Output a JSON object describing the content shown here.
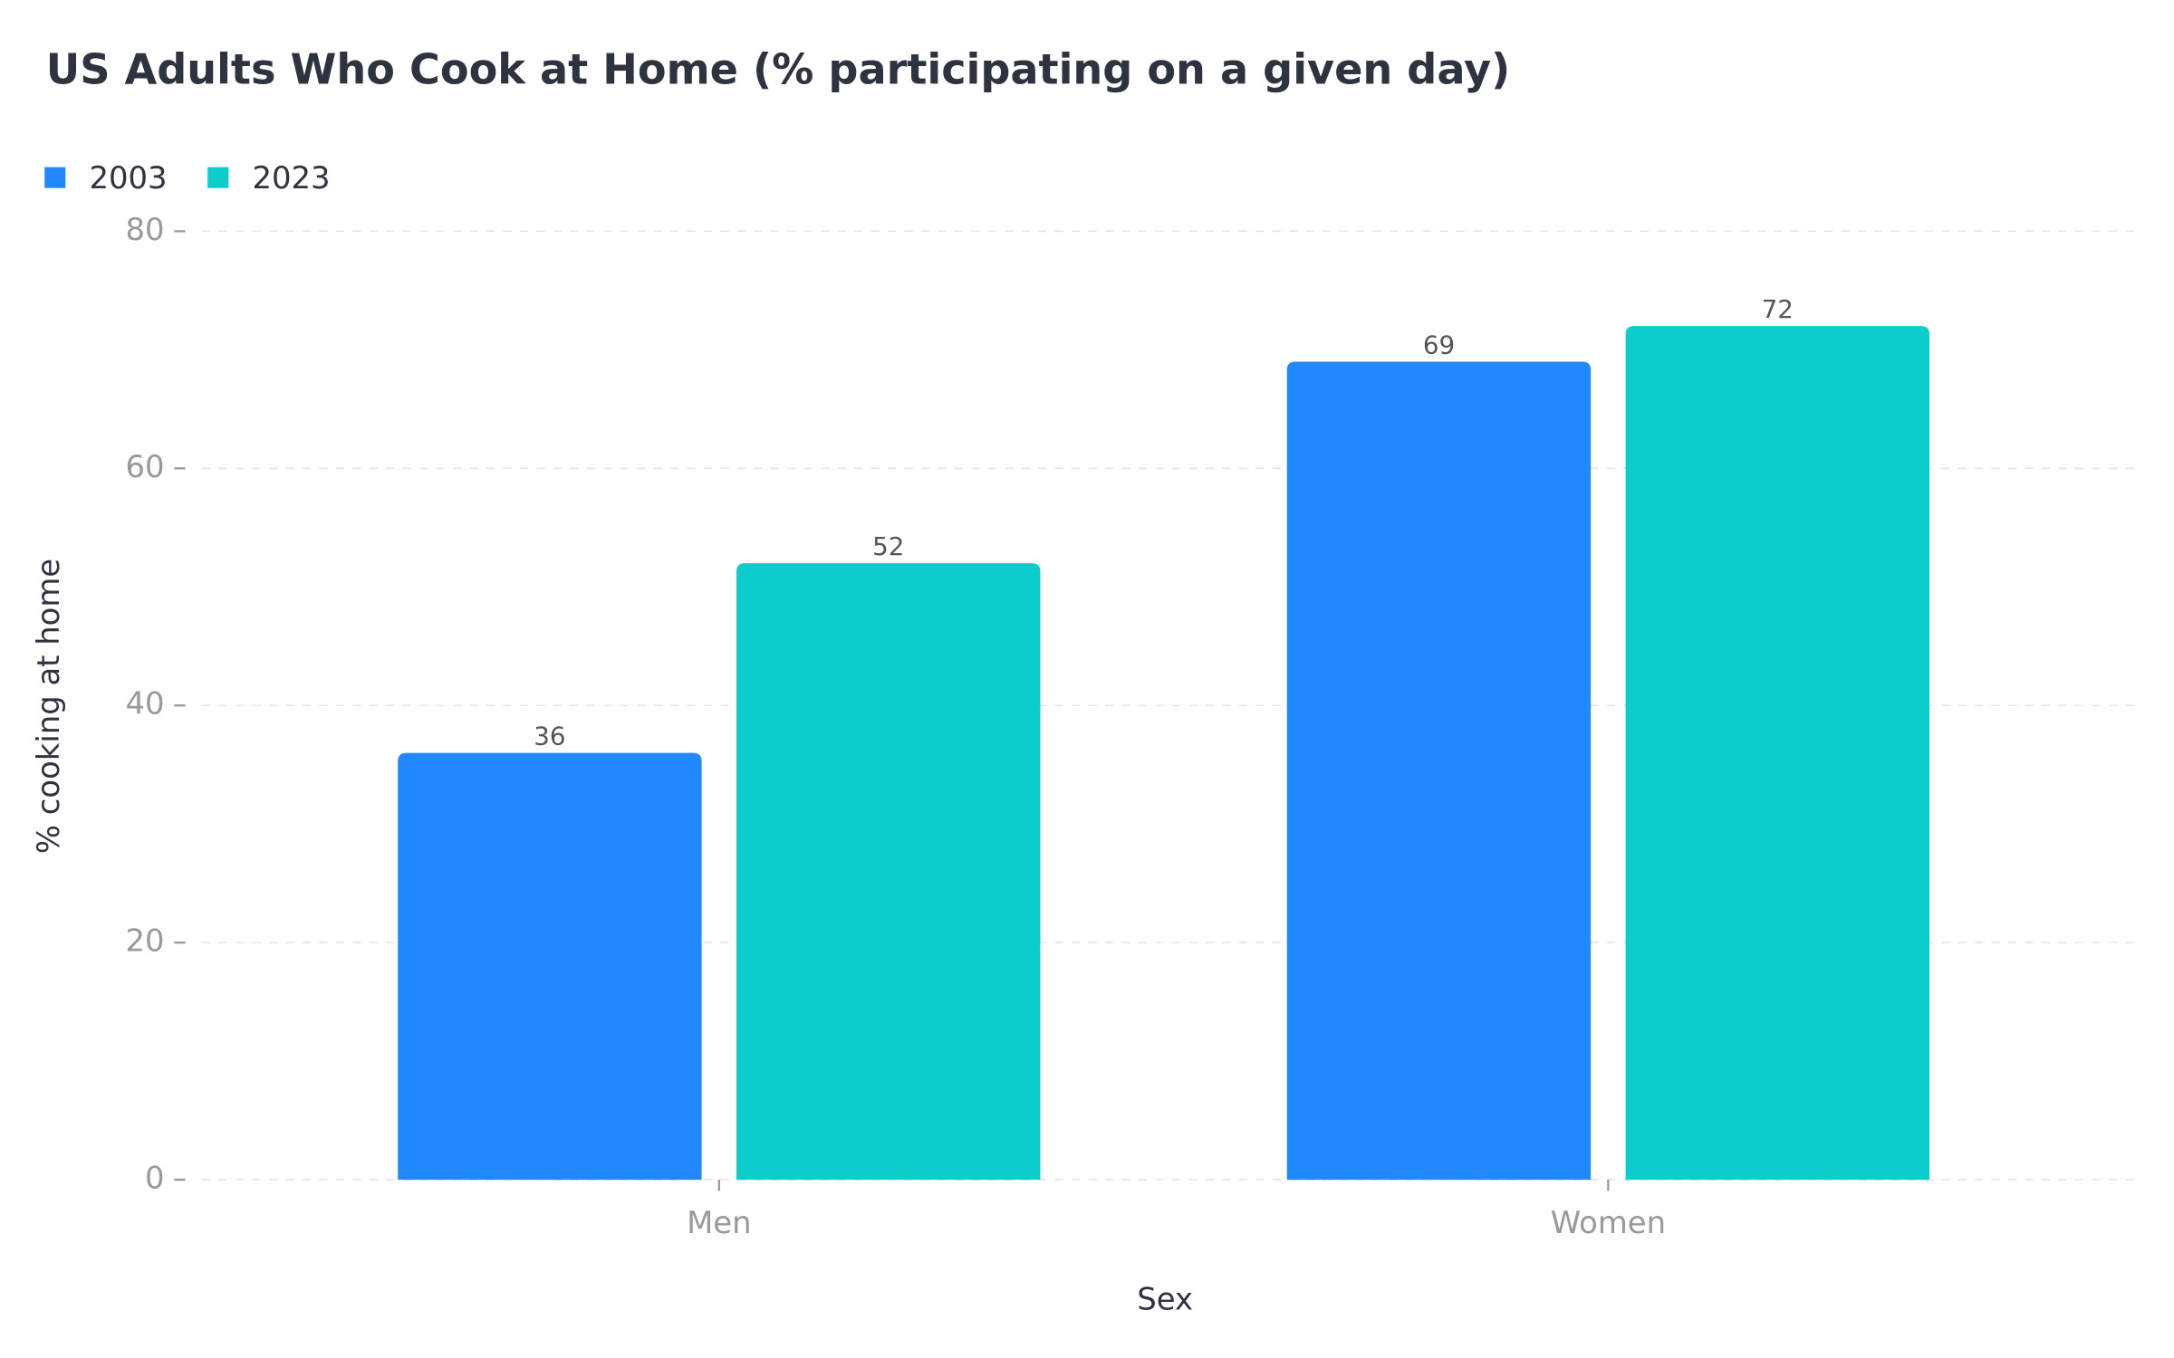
{
  "chart_data": {
    "type": "bar",
    "title": "US Adults Who Cook at Home (% participating on a given day)",
    "x_label": "Sex",
    "y_label": "% cooking at home",
    "categories": [
      "Men",
      "Women"
    ],
    "series": [
      {
        "name": "2003",
        "color": "#2288ff",
        "values": [
          36,
          69
        ]
      },
      {
        "name": "2023",
        "color": "#0ccccc",
        "values": [
          52,
          72
        ]
      }
    ],
    "ylim": [
      0,
      80
    ],
    "yticks": [
      0,
      20,
      40,
      60,
      80
    ],
    "grid": true,
    "legend": "top-left"
  }
}
